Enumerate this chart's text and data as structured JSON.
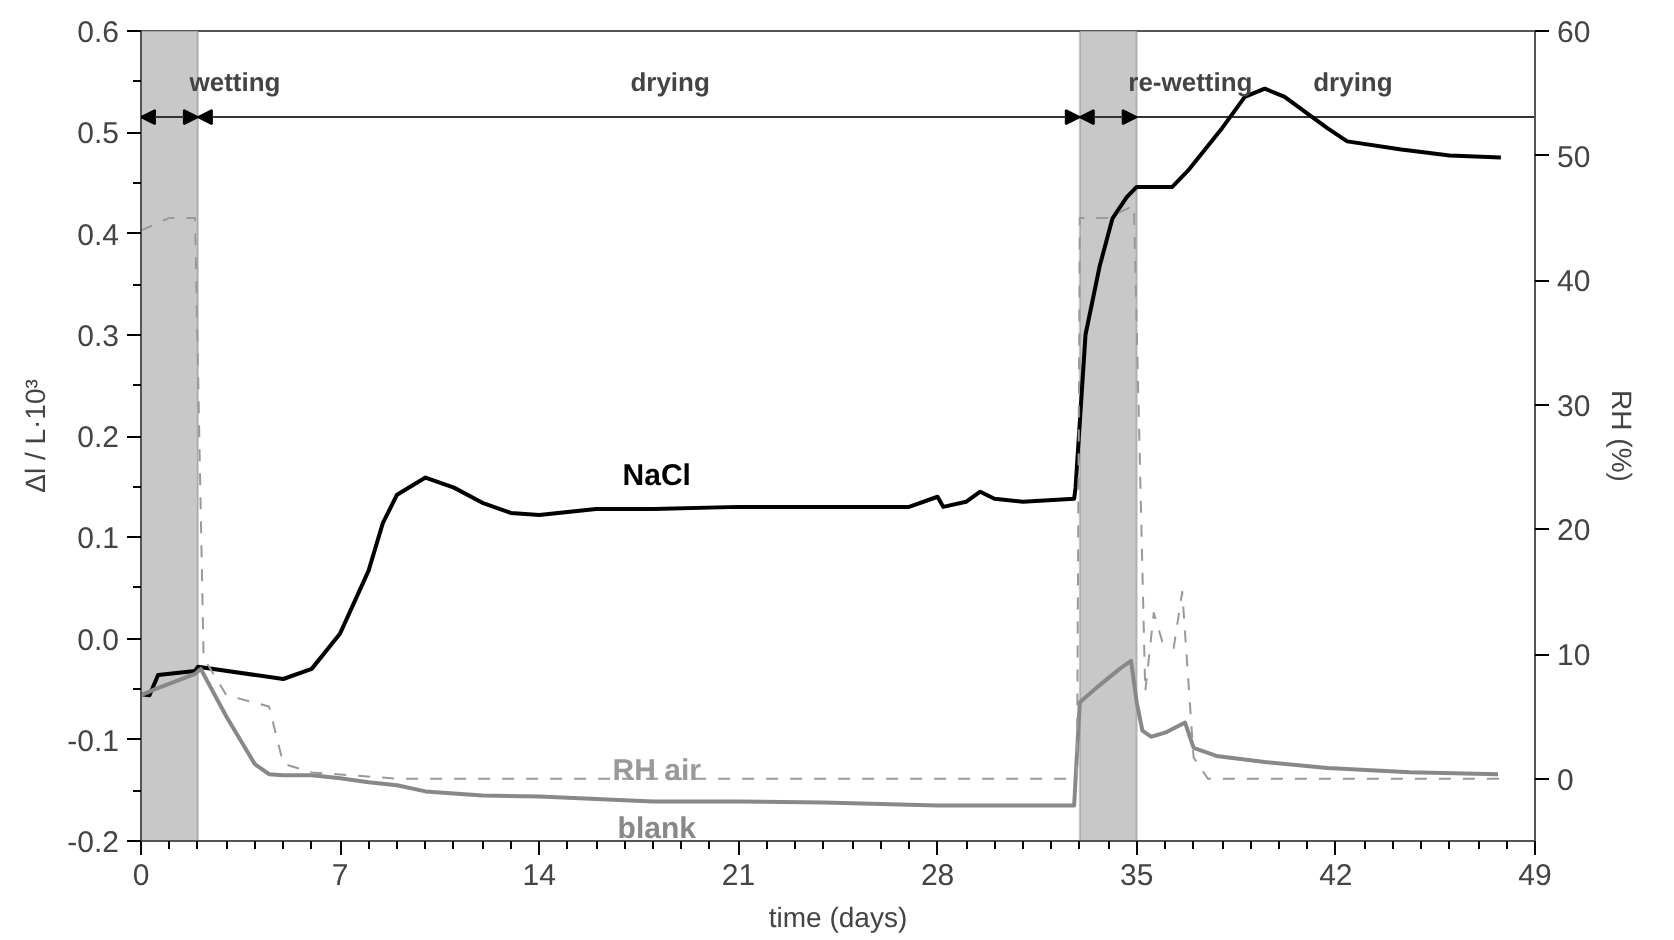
{
  "chart_data": {
    "type": "line",
    "xlabel": "time (days)",
    "ylabel": "Δl / L·10³",
    "y2label": "RH (%)",
    "xlim": [
      0,
      49
    ],
    "xticks": [
      0,
      7,
      14,
      21,
      28,
      35,
      42,
      49
    ],
    "ylim": [
      -0.2,
      0.6
    ],
    "yticks": [
      -0.2,
      -0.1,
      {
        "value": 0,
        "label": "0.0"
      },
      0.1,
      0.2,
      0.3,
      0.4,
      0.5,
      0.6
    ],
    "y2lim": [
      -5,
      60
    ],
    "y2ticks": [
      0,
      10,
      20,
      30,
      40,
      50,
      60
    ],
    "grid": false,
    "legend": false,
    "marker": "none",
    "bands": [
      {
        "axis": "x",
        "from": 0,
        "to": 2,
        "color": "#c8c8c8"
      },
      {
        "axis": "x",
        "from": 33,
        "to": 35,
        "color": "#c8c8c8"
      }
    ],
    "ref_lines": [
      {
        "axis": "y",
        "value": 0.515,
        "color": "#333333",
        "line_style": "solid"
      }
    ],
    "annotations": [
      {
        "text": "wetting",
        "x": 1,
        "y": 0.515
      },
      {
        "text": "drying",
        "x": 16.5,
        "y": 0.515
      },
      {
        "text": "re-wetting",
        "x": 34,
        "y": 0.515
      },
      {
        "text": "drying",
        "x": 40.5,
        "y": 0.515
      }
    ],
    "series": [
      {
        "name": "NaCl",
        "color": "#000000",
        "line_style": "solid",
        "x": [
          0,
          0.3,
          0.6,
          1.9,
          2,
          5,
          6,
          7,
          8,
          8.5,
          9,
          10,
          11,
          12,
          13,
          14,
          16,
          18,
          21,
          24,
          27,
          28,
          28.2,
          29,
          29.5,
          30,
          31,
          32.8,
          32.85,
          33.2,
          33.7,
          34.15,
          34.65,
          35,
          36.25,
          36.8,
          38,
          38.8,
          39.5,
          40.2,
          41.7,
          42.4,
          44.3,
          46,
          47.8
        ],
        "values": [
          -0.055,
          -0.056,
          -0.036,
          -0.032,
          -0.028,
          -0.04,
          -0.03,
          0.005,
          0.067,
          0.114,
          0.142,
          0.159,
          0.149,
          0.134,
          0.124,
          0.122,
          0.128,
          0.128,
          0.13,
          0.13,
          0.13,
          0.14,
          0.13,
          0.135,
          0.145,
          0.138,
          0.135,
          0.138,
          0.149,
          0.3,
          0.368,
          0.415,
          0.436,
          0.446,
          0.446,
          0.462,
          0.504,
          0.535,
          0.543,
          0.535,
          0.504,
          0.491,
          0.483,
          0.477,
          0.475
        ]
      },
      {
        "name": "blank",
        "color": "#888888",
        "line_style": "solid",
        "x": [
          0,
          0.5,
          1.9,
          2.1,
          3,
          4,
          4.5,
          5,
          6,
          7,
          8,
          9,
          10,
          12,
          14,
          18,
          21,
          24,
          28,
          32.8,
          33,
          33.7,
          34.4,
          34.8,
          35,
          35.2,
          35.5,
          36,
          36.7,
          37,
          37.8,
          39.5,
          41.7,
          44.6,
          47.7
        ],
        "values": [
          -0.056,
          -0.05,
          -0.035,
          -0.03,
          -0.077,
          -0.124,
          -0.134,
          -0.135,
          -0.135,
          -0.138,
          -0.142,
          -0.145,
          -0.151,
          -0.155,
          -0.156,
          -0.161,
          -0.161,
          -0.162,
          -0.165,
          -0.165,
          -0.063,
          -0.046,
          -0.03,
          -0.022,
          -0.063,
          -0.091,
          -0.097,
          -0.093,
          -0.083,
          -0.108,
          -0.116,
          -0.122,
          -0.128,
          -0.132,
          -0.134
        ]
      },
      {
        "name": "RH air",
        "color": "#999999",
        "axis": "y2",
        "line_style": "dashed",
        "x": [
          0,
          1,
          1.9,
          2.2,
          3,
          4.5,
          5,
          6,
          9,
          20,
          32.9,
          33,
          34,
          34.9,
          35.3,
          35.6,
          35.9,
          36.3,
          36.6,
          37,
          37.5,
          47.8
        ],
        "values": [
          44,
          45,
          45,
          9.7,
          6.7,
          5.8,
          1.2,
          0.5,
          0,
          0,
          0,
          45,
          45,
          46,
          7,
          13.3,
          11,
          10.5,
          15,
          1.7,
          0,
          0
        ]
      }
    ]
  }
}
